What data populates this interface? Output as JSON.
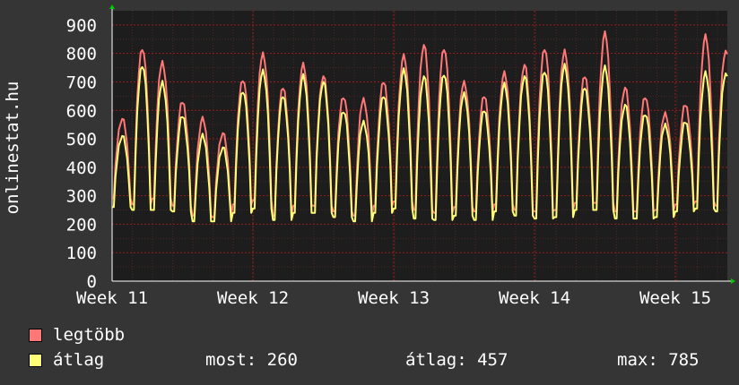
{
  "chart_data": {
    "type": "line",
    "ylabel": "onlinestat.hu",
    "ylim": [
      0,
      950
    ],
    "yticks": [
      0,
      100,
      200,
      300,
      400,
      500,
      600,
      700,
      800,
      900
    ],
    "xticks": [
      "Week 11",
      "Week 12",
      "Week 13",
      "Week 14",
      "Week 15"
    ],
    "grid": true,
    "colors": {
      "background": "#353535",
      "plot": "#1d1d1d",
      "grid": "#9b1c1c",
      "text": "#ffffff"
    },
    "series": [
      {
        "name": "legtöbb",
        "color": "#ff7777",
        "daily_peaks": [
          570,
          820,
          770,
          630,
          570,
          520,
          710,
          800,
          680,
          760,
          720,
          650,
          640,
          700,
          790,
          830,
          820,
          700,
          650,
          730,
          760,
          820,
          810,
          720,
          870,
          680,
          650,
          590,
          620,
          860,
          810,
          775
        ],
        "daily_troughs": [
          290,
          270,
          290,
          265,
          230,
          225,
          270,
          285,
          230,
          265,
          265,
          245,
          230,
          265,
          280,
          250,
          240,
          260,
          245,
          270,
          250,
          245,
          250,
          275,
          275,
          245,
          245,
          250,
          270,
          280,
          265,
          265
        ]
      },
      {
        "name": "átlag",
        "color": "#ffff77",
        "daily_peaks": [
          510,
          760,
          700,
          580,
          510,
          470,
          670,
          740,
          650,
          720,
          700,
          600,
          560,
          650,
          740,
          720,
          730,
          660,
          600,
          690,
          720,
          740,
          760,
          680,
          750,
          620,
          590,
          550,
          560,
          730,
          730,
          710
        ],
        "daily_troughs": [
          260,
          250,
          250,
          245,
          210,
          210,
          240,
          255,
          215,
          240,
          240,
          225,
          210,
          240,
          255,
          220,
          215,
          230,
          215,
          245,
          230,
          220,
          225,
          250,
          250,
          220,
          220,
          225,
          245,
          255,
          245,
          255
        ]
      }
    ]
  },
  "legend": {
    "max_label": "legtöbb",
    "avg_label": "átlag",
    "stat_now": "most: 260",
    "stat_avg": "átlag: 457",
    "stat_max": "max: 785"
  }
}
